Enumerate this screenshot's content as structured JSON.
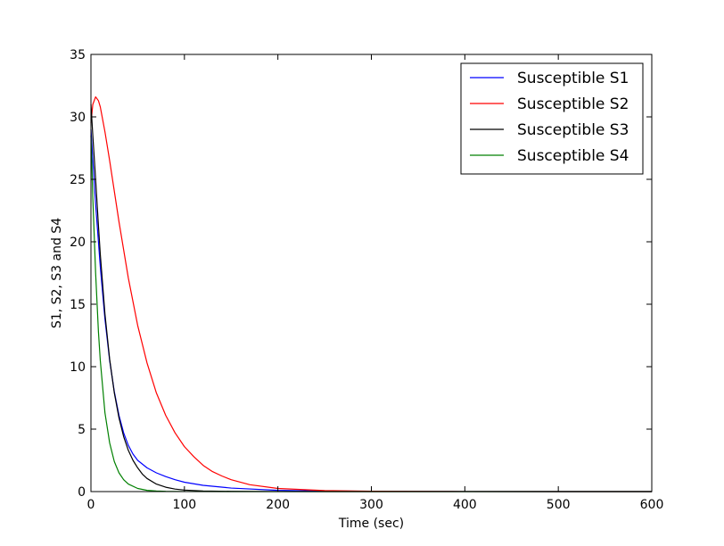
{
  "chart_data": {
    "type": "line",
    "title": "",
    "xlabel": "Time (sec)",
    "ylabel": "S1, S2, S3 and S4",
    "xlim": [
      0,
      600
    ],
    "ylim": [
      0,
      35
    ],
    "xticks": [
      0,
      100,
      200,
      300,
      400,
      500,
      600
    ],
    "yticks": [
      0,
      5,
      10,
      15,
      20,
      25,
      30,
      35
    ],
    "grid": false,
    "legend_position": "top-right",
    "series": [
      {
        "name": "Susceptible S1",
        "color": "#0000ff",
        "x": [
          0,
          2,
          5,
          10,
          15,
          20,
          25,
          30,
          35,
          40,
          45,
          50,
          60,
          70,
          80,
          90,
          100,
          120,
          150,
          200,
          250,
          300,
          400,
          500,
          600
        ],
        "y": [
          29,
          26.5,
          23,
          18,
          13.8,
          10.5,
          8,
          6.1,
          4.7,
          3.7,
          3,
          2.5,
          1.9,
          1.5,
          1.2,
          0.95,
          0.75,
          0.5,
          0.28,
          0.1,
          0.04,
          0.02,
          0.005,
          0.001,
          0
        ]
      },
      {
        "name": "Susceptible S2",
        "color": "#ff0000",
        "x": [
          0,
          2,
          5,
          8,
          10,
          15,
          20,
          30,
          40,
          50,
          60,
          70,
          80,
          90,
          100,
          110,
          120,
          130,
          140,
          150,
          170,
          200,
          250,
          300,
          400,
          500,
          600
        ],
        "y": [
          29.5,
          31,
          31.6,
          31.3,
          30.8,
          28.8,
          26.5,
          21.6,
          17.1,
          13.3,
          10.3,
          7.9,
          6.1,
          4.7,
          3.6,
          2.8,
          2.1,
          1.6,
          1.25,
          0.95,
          0.55,
          0.25,
          0.08,
          0.03,
          0.005,
          0.001,
          0
        ]
      },
      {
        "name": "Susceptible S3",
        "color": "#000000",
        "x": [
          0,
          2,
          5,
          8,
          10,
          15,
          20,
          25,
          30,
          35,
          40,
          45,
          50,
          55,
          60,
          70,
          80,
          90,
          100,
          120,
          150,
          200,
          300,
          400,
          600
        ],
        "y": [
          31,
          28.5,
          25,
          21.3,
          19,
          14.2,
          10.6,
          7.9,
          5.9,
          4.4,
          3.3,
          2.5,
          1.9,
          1.4,
          1.05,
          0.6,
          0.35,
          0.2,
          0.12,
          0.05,
          0.02,
          0.005,
          0.001,
          0,
          0
        ]
      },
      {
        "name": "Susceptible S4",
        "color": "#008000",
        "x": [
          0,
          2,
          5,
          8,
          10,
          15,
          20,
          25,
          30,
          35,
          40,
          50,
          60,
          70,
          80,
          100,
          150,
          200,
          300,
          400,
          600
        ],
        "y": [
          28.5,
          23.5,
          17.5,
          12.8,
          10.5,
          6.3,
          3.9,
          2.4,
          1.5,
          0.95,
          0.6,
          0.25,
          0.1,
          0.05,
          0.02,
          0.005,
          0.001,
          0,
          0,
          0,
          0
        ]
      }
    ]
  }
}
